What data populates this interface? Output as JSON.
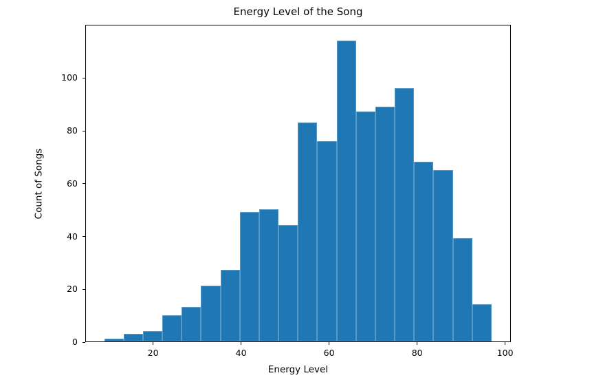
{
  "chart_data": {
    "type": "bar",
    "subtype": "histogram",
    "title": "Energy Level of the Song",
    "xlabel": "Energy Level",
    "ylabel": "Count of Songs",
    "bar_color": "#1f77b4",
    "background_color": "#ffffff",
    "grid": false,
    "legend_position": "none",
    "bin_start": 8.75,
    "bin_width": 4.4,
    "bin_edges": [
      8.75,
      13.15,
      17.55,
      21.95,
      26.35,
      30.75,
      35.15,
      39.55,
      43.95,
      48.35,
      52.75,
      57.15,
      61.55,
      65.95,
      70.35,
      74.75,
      79.15,
      83.55,
      87.95,
      92.35,
      96.75
    ],
    "counts": [
      1,
      3,
      4,
      10,
      13,
      21,
      27,
      49,
      50,
      44,
      83,
      76,
      114,
      87,
      89,
      96,
      68,
      65,
      39,
      14
    ],
    "total_count": 953,
    "xticks": [
      20,
      40,
      60,
      80,
      100
    ],
    "yticks": [
      0,
      20,
      40,
      60,
      80,
      100
    ],
    "xlim": [
      4.6,
      101.3
    ],
    "ylim": [
      0,
      120.2
    ]
  }
}
